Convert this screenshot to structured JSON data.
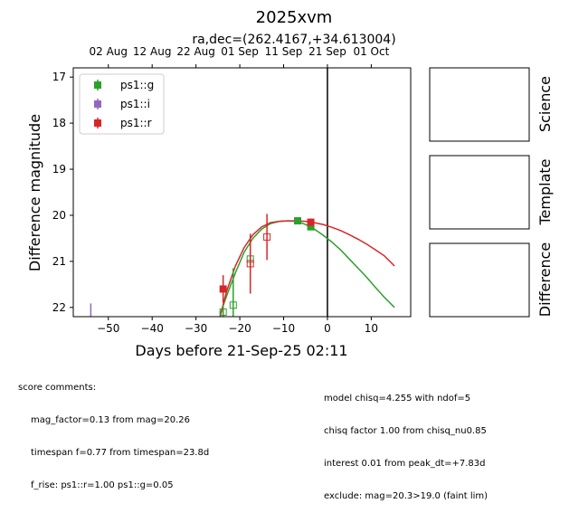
{
  "chart_data": {
    "type": "scatter",
    "title": "2025xvm",
    "subtitle": "ra,dec=(262.4167,+34.613004)",
    "xlabel": "Days before 21-Sep-25 02:11",
    "ylabel": "Difference magnitude",
    "xlim": [
      -58,
      19
    ],
    "ylim": [
      22.2,
      16.8
    ],
    "y_inverted": true,
    "x_ticks": [
      -50,
      -40,
      -30,
      -20,
      -10,
      0,
      10
    ],
    "y_ticks": [
      17,
      18,
      19,
      20,
      21,
      22
    ],
    "top_axis_ticks": [
      {
        "x": -50,
        "label": "02 Aug"
      },
      {
        "x": -40,
        "label": "12 Aug"
      },
      {
        "x": -30,
        "label": "22 Aug"
      },
      {
        "x": -20,
        "label": "01 Sep"
      },
      {
        "x": -10,
        "label": "11 Sep"
      },
      {
        "x": 0,
        "label": "21 Sep"
      },
      {
        "x": 10,
        "label": "01 Oct"
      }
    ],
    "peak_line_x": 0,
    "legend_placement": "top-left",
    "legend": [
      {
        "name": "ps1::g",
        "color": "#2ca02c"
      },
      {
        "name": "ps1::i",
        "color": "#9467bd"
      },
      {
        "name": "ps1::r",
        "color": "#d62728"
      }
    ],
    "series": [
      {
        "name": "ps1::g",
        "color": "#2ca02c",
        "points": [
          {
            "x": -23.8,
            "y": 22.1,
            "err": 0.15,
            "filled": false
          },
          {
            "x": -21.5,
            "y": 21.95,
            "err": 0.8,
            "filled": false
          },
          {
            "x": -17.6,
            "y": 20.95,
            "err": 0.15,
            "filled": false
          },
          {
            "x": -6.8,
            "y": 20.12,
            "err": 0.06,
            "filled": true
          },
          {
            "x": -3.8,
            "y": 20.25,
            "err": 0.06,
            "filled": true
          }
        ],
        "model": [
          [
            -24.5,
            22.15
          ],
          [
            -23,
            21.75
          ],
          [
            -21,
            21.25
          ],
          [
            -19,
            20.8
          ],
          [
            -17,
            20.5
          ],
          [
            -15,
            20.3
          ],
          [
            -13,
            20.18
          ],
          [
            -11,
            20.13
          ],
          [
            -9,
            20.12
          ],
          [
            -7,
            20.13
          ],
          [
            -5,
            20.2
          ],
          [
            -3,
            20.3
          ],
          [
            -1,
            20.43
          ],
          [
            1,
            20.58
          ],
          [
            3,
            20.75
          ],
          [
            5,
            20.95
          ],
          [
            7,
            21.15
          ],
          [
            9,
            21.35
          ],
          [
            11,
            21.57
          ],
          [
            13,
            21.78
          ],
          [
            15.3,
            22.0
          ]
        ]
      },
      {
        "name": "ps1::i",
        "color": "#9467bd",
        "points": [
          {
            "x": -54,
            "y": 22.05,
            "err": 0.2,
            "filled": true,
            "upper_limit": true
          }
        ]
      },
      {
        "name": "ps1::r",
        "color": "#d62728",
        "points": [
          {
            "x": -23.8,
            "y": 21.6,
            "err": 0.3,
            "filled": true
          },
          {
            "x": -17.6,
            "y": 21.05,
            "err": 0.65,
            "filled": false
          },
          {
            "x": -13.8,
            "y": 20.47,
            "err": 0.5,
            "filled": false
          },
          {
            "x": -3.8,
            "y": 20.15,
            "err": 0.08,
            "filled": true
          }
        ],
        "model": [
          [
            -24.5,
            22.2
          ],
          [
            -23,
            21.65
          ],
          [
            -21,
            21.1
          ],
          [
            -19,
            20.7
          ],
          [
            -17,
            20.42
          ],
          [
            -15,
            20.25
          ],
          [
            -13,
            20.16
          ],
          [
            -11,
            20.13
          ],
          [
            -9,
            20.12
          ],
          [
            -7,
            20.12
          ],
          [
            -5,
            20.13
          ],
          [
            -3,
            20.16
          ],
          [
            -1,
            20.2
          ],
          [
            1,
            20.26
          ],
          [
            3,
            20.33
          ],
          [
            5,
            20.42
          ],
          [
            7,
            20.52
          ],
          [
            9,
            20.63
          ],
          [
            11,
            20.75
          ],
          [
            13,
            20.88
          ],
          [
            15.3,
            21.1
          ]
        ]
      }
    ]
  },
  "stamps": [
    "Science",
    "Template",
    "Difference"
  ],
  "comments": {
    "heading": "score comments:",
    "left": [
      "mag_factor=0.13 from mag=20.26",
      "timespan f=0.77 from timespan=23.8d",
      "f_rise: ps1::r=1.00 ps1::g=0.05"
    ],
    "right": [
      "model chisq=4.255 with ndof=5",
      "chisq factor 1.00 from chisq_nu0.85",
      "interest 0.01 from peak_dt=+7.83d",
      "exclude: mag=20.3>19.0 (faint lim)"
    ]
  }
}
